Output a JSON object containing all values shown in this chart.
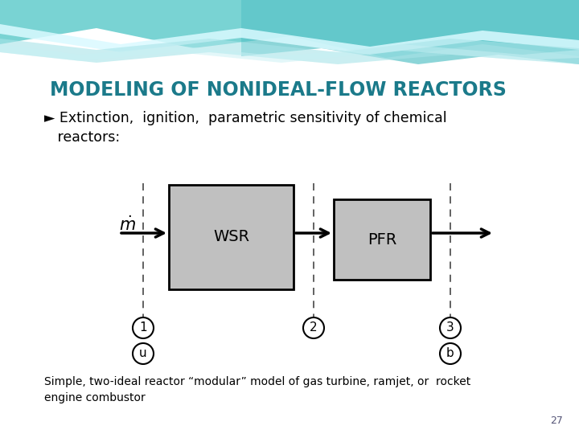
{
  "title": "MODELING OF NONIDEAL-FLOW REACTORS",
  "title_color": "#1B7A8A",
  "bullet_line1": "► Extinction,  ignition,  parametric sensitivity of chemical",
  "bullet_line2": "   reactors:",
  "bottom_text": "Simple, two-ideal reactor “modular” model of gas turbine, ramjet, or  rocket\nengine combustor",
  "page_number": "27",
  "wsr_label": "WSR",
  "pfr_label": "PFR",
  "mdot_label": "$\\dot{m}$",
  "bg_white": "#FFFFFF",
  "box_fill": "#C0C0C0",
  "box_edge": "#000000",
  "wave1_color": "#7AD4D4",
  "wave2_color": "#A8E4E4",
  "wave3_color": "#C0ECEC",
  "wave_white": "#E8F8F8"
}
